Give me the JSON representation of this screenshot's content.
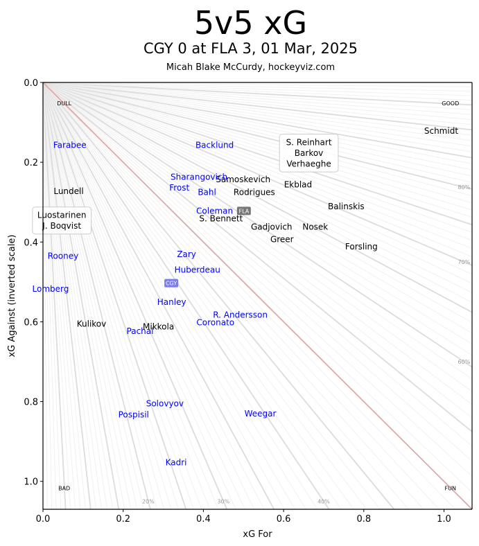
{
  "title": "5v5 xG",
  "subtitle": "CGY 0 at FLA 3, 01 Mar, 2025",
  "credit": "Micah Blake McCurdy, hockeyviz.com",
  "colors": {
    "CGY": "#0000ff",
    "FLA": "#000000",
    "cgy_badge": "#7b7bf2",
    "fla_badge": "#777777",
    "diagonal": "#e0a8a8",
    "fan": "#cccccc"
  },
  "chart_data": {
    "type": "scatter",
    "title": "5v5 xG",
    "xlabel": "xG For",
    "ylabel": "xG Against (inverted scale)",
    "xlim": [
      0,
      1.07
    ],
    "ylim": [
      1.07,
      0
    ],
    "xticks": [
      "0.0",
      "0.2",
      "0.4",
      "0.6",
      "0.8",
      "1.0"
    ],
    "yticks": [
      "0.0",
      "0.2",
      "0.4",
      "0.6",
      "0.8",
      "1.0"
    ],
    "corner_labels": {
      "top_left": "DULL",
      "top_right": "GOOD",
      "bottom_left": "BAD",
      "bottom_right": "FUN"
    },
    "pct_labels": [
      {
        "label": "20%",
        "pct": 0.2
      },
      {
        "label": "30%",
        "pct": 0.3
      },
      {
        "label": "40%",
        "pct": 0.4
      },
      {
        "label": "60%",
        "pct": 0.6
      },
      {
        "label": "70%",
        "pct": 0.7
      },
      {
        "label": "80%",
        "pct": 0.8
      }
    ],
    "teams": [
      {
        "name": "FLA",
        "x": 0.501,
        "y": 0.322
      },
      {
        "name": "CGY",
        "x": 0.32,
        "y": 0.503
      }
    ],
    "players": [
      {
        "name": "Schmidt",
        "team": "FLA",
        "x": 0.993,
        "y": 0.122
      },
      {
        "name": "S. Reinhart\nBarkov\nVerhaeghe",
        "team": "FLA",
        "x": 0.663,
        "y": 0.177,
        "boxed": true
      },
      {
        "name": "Samoskevich",
        "team": "FLA",
        "x": 0.499,
        "y": 0.243
      },
      {
        "name": "Ekblad",
        "team": "FLA",
        "x": 0.636,
        "y": 0.256
      },
      {
        "name": "Rodrigues",
        "team": "FLA",
        "x": 0.527,
        "y": 0.275
      },
      {
        "name": "Balinskis",
        "team": "FLA",
        "x": 0.756,
        "y": 0.311
      },
      {
        "name": "S. Bennett",
        "team": "FLA",
        "x": 0.444,
        "y": 0.341
      },
      {
        "name": "Gadjovich",
        "team": "FLA",
        "x": 0.57,
        "y": 0.362
      },
      {
        "name": "Nosek",
        "team": "FLA",
        "x": 0.679,
        "y": 0.362
      },
      {
        "name": "Greer",
        "team": "FLA",
        "x": 0.596,
        "y": 0.393
      },
      {
        "name": "Forsling",
        "team": "FLA",
        "x": 0.794,
        "y": 0.412
      },
      {
        "name": "Lundell",
        "team": "FLA",
        "x": 0.064,
        "y": 0.273
      },
      {
        "name": "Luostarinen\nJ. Boqvist",
        "team": "FLA",
        "x": 0.047,
        "y": 0.346,
        "boxed": true
      },
      {
        "name": "Kulikov",
        "team": "FLA",
        "x": 0.121,
        "y": 0.605
      },
      {
        "name": "Mikkola",
        "team": "FLA",
        "x": 0.288,
        "y": 0.612
      },
      {
        "name": "Farabee",
        "team": "CGY",
        "x": 0.067,
        "y": 0.157
      },
      {
        "name": "Backlund",
        "team": "CGY",
        "x": 0.428,
        "y": 0.157
      },
      {
        "name": "Sharangovich",
        "team": "CGY",
        "x": 0.389,
        "y": 0.237
      },
      {
        "name": "Frost",
        "team": "CGY",
        "x": 0.34,
        "y": 0.264
      },
      {
        "name": "Bahl",
        "team": "CGY",
        "x": 0.409,
        "y": 0.275
      },
      {
        "name": "Coleman",
        "team": "CGY",
        "x": 0.428,
        "y": 0.322
      },
      {
        "name": "Zary",
        "team": "CGY",
        "x": 0.358,
        "y": 0.431
      },
      {
        "name": "Rooney",
        "team": "CGY",
        "x": 0.05,
        "y": 0.435
      },
      {
        "name": "Huberdeau",
        "team": "CGY",
        "x": 0.385,
        "y": 0.47
      },
      {
        "name": "Lomberg",
        "team": "CGY",
        "x": 0.019,
        "y": 0.518
      },
      {
        "name": "Hanley",
        "team": "CGY",
        "x": 0.321,
        "y": 0.551
      },
      {
        "name": "R. Andersson",
        "team": "CGY",
        "x": 0.492,
        "y": 0.583
      },
      {
        "name": "Coronato",
        "team": "CGY",
        "x": 0.43,
        "y": 0.602
      },
      {
        "name": "Pachal",
        "team": "CGY",
        "x": 0.242,
        "y": 0.624
      },
      {
        "name": "Solovyov",
        "team": "CGY",
        "x": 0.304,
        "y": 0.805
      },
      {
        "name": "Pospisil",
        "team": "CGY",
        "x": 0.226,
        "y": 0.833
      },
      {
        "name": "Weegar",
        "team": "CGY",
        "x": 0.542,
        "y": 0.83
      },
      {
        "name": "Kadri",
        "team": "CGY",
        "x": 0.332,
        "y": 0.953
      }
    ]
  }
}
